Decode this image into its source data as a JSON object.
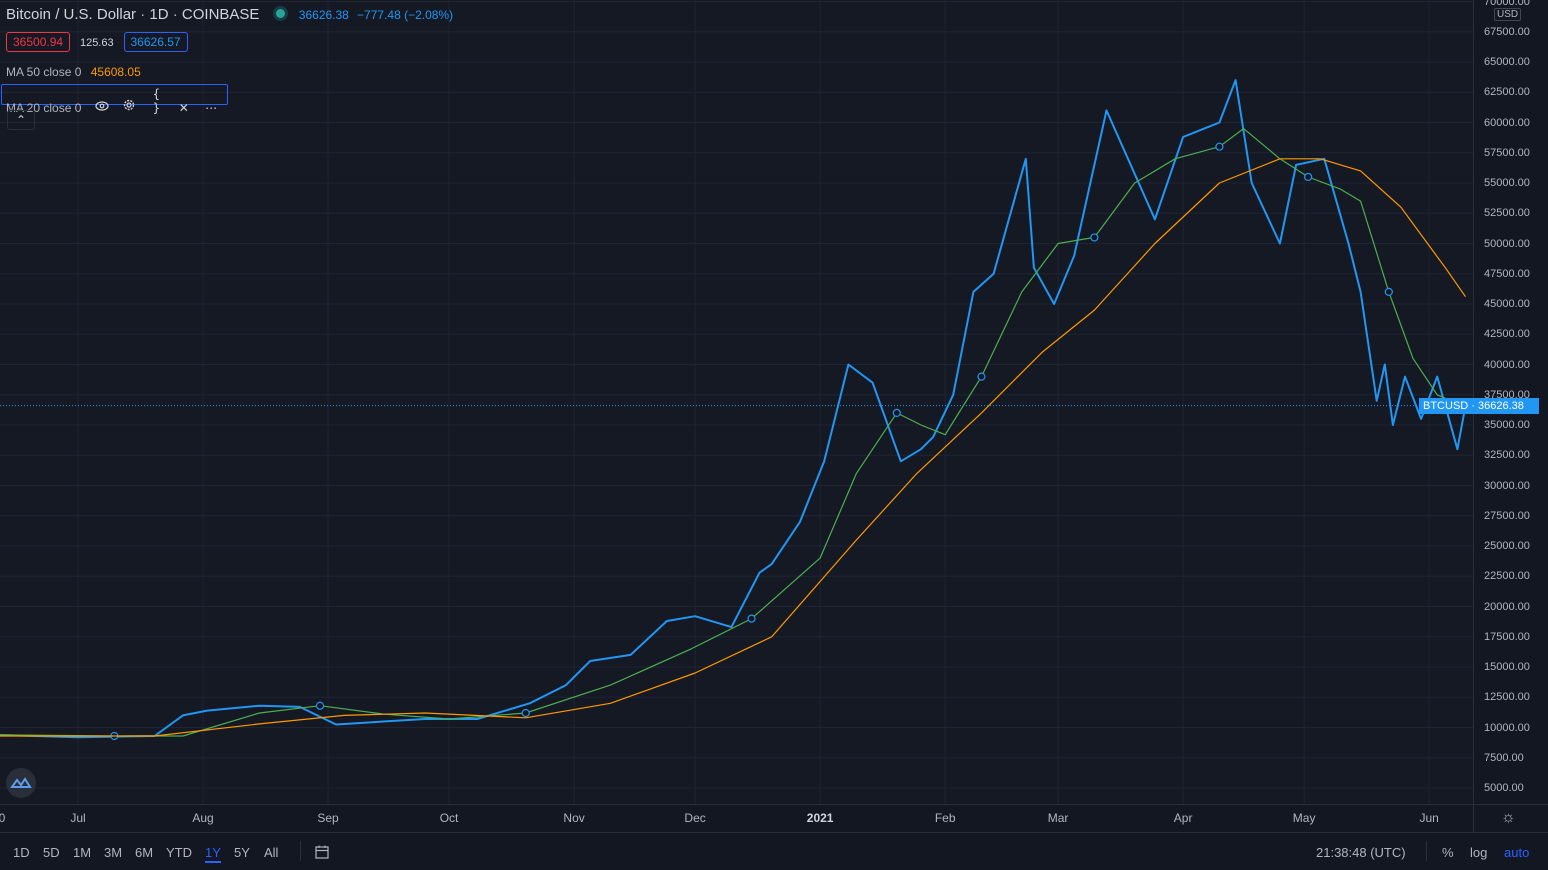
{
  "header": {
    "symbol_title": "Bitcoin / U.S. Dollar",
    "interval": "1D",
    "exchange": "COINBASE",
    "last_price": "36626.38",
    "change": "−777.48 (−2.08%)",
    "sep": "·"
  },
  "quotes": {
    "bid": "36500.94",
    "spread": "125.63",
    "ask": "36626.57"
  },
  "indicators": {
    "ma50_label": "MA 50 close 0",
    "ma50_value": "45608.05",
    "ma20_label": "MA 20 close 0"
  },
  "price_axis": {
    "currency": "USD",
    "ticks": [
      "70000.00",
      "67500.00",
      "65000.00",
      "62500.00",
      "60000.00",
      "57500.00",
      "55000.00",
      "52500.00",
      "50000.00",
      "47500.00",
      "45000.00",
      "42500.00",
      "40000.00",
      "37500.00",
      "35000.00",
      "32500.00",
      "30000.00",
      "27500.00",
      "25000.00",
      "22500.00",
      "20000.00",
      "17500.00",
      "15000.00",
      "12500.00",
      "10000.00",
      "7500.00",
      "5000.00"
    ],
    "current_label": "BTCUSD · 36626.38"
  },
  "time_axis": {
    "ticks": [
      "0",
      "Jul",
      "Aug",
      "Sep",
      "Oct",
      "Nov",
      "Dec",
      "2021",
      "Feb",
      "Mar",
      "Apr",
      "May",
      "Jun"
    ]
  },
  "bottom_bar": {
    "ranges": [
      "1D",
      "5D",
      "1M",
      "3M",
      "6M",
      "YTD",
      "1Y",
      "5Y",
      "All"
    ],
    "active_range": "1Y",
    "clock": "21:38:48 (UTC)",
    "percent": "%",
    "log": "log",
    "auto": "auto"
  },
  "colors": {
    "price": "#2196f3",
    "ma20": "#4caf50",
    "ma50": "#ff9800",
    "background": "#131722"
  },
  "chart_data": {
    "type": "line",
    "title": "Bitcoin / U.S. Dollar · 1D · COINBASE",
    "x_type": "date",
    "x_range": [
      "2020-06-10",
      "2021-06-10"
    ],
    "ylim": [
      4000,
      70000
    ],
    "grid": true,
    "series": [
      {
        "name": "BTCUSD",
        "color": "#2196f3",
        "x": [
          "2020-06-10",
          "2020-07-01",
          "2020-07-20",
          "2020-07-27",
          "2020-08-02",
          "2020-08-15",
          "2020-08-25",
          "2020-09-03",
          "2020-09-10",
          "2020-09-25",
          "2020-10-08",
          "2020-10-15",
          "2020-10-21",
          "2020-10-30",
          "2020-11-05",
          "2020-11-15",
          "2020-11-24",
          "2020-12-01",
          "2020-12-10",
          "2020-12-17",
          "2020-12-20",
          "2020-12-27",
          "2021-01-02",
          "2021-01-08",
          "2021-01-14",
          "2021-01-21",
          "2021-01-26",
          "2021-01-29",
          "2021-02-03",
          "2021-02-08",
          "2021-02-13",
          "2021-02-21",
          "2021-02-23",
          "2021-02-28",
          "2021-03-05",
          "2021-03-13",
          "2021-03-17",
          "2021-03-25",
          "2021-04-01",
          "2021-04-10",
          "2021-04-14",
          "2021-04-18",
          "2021-04-25",
          "2021-04-29",
          "2021-05-06",
          "2021-05-12",
          "2021-05-15",
          "2021-05-19",
          "2021-05-21",
          "2021-05-23",
          "2021-05-26",
          "2021-05-30",
          "2021-06-03",
          "2021-06-08",
          "2021-06-10"
        ],
        "y": [
          9400,
          9200,
          9300,
          11000,
          11400,
          11800,
          11700,
          10250,
          10400,
          10700,
          10700,
          11400,
          12000,
          13500,
          15500,
          16000,
          18800,
          19200,
          18300,
          22800,
          23500,
          27000,
          32000,
          40000,
          38500,
          32000,
          33000,
          34000,
          37500,
          46000,
          47500,
          57000,
          48000,
          45000,
          49000,
          61000,
          58000,
          52000,
          58800,
          60000,
          63500,
          55000,
          50000,
          56500,
          57000,
          50000,
          46000,
          37000,
          40000,
          35000,
          39000,
          35500,
          39000,
          33000,
          36600
        ]
      },
      {
        "name": "MA 20",
        "color": "#4caf50",
        "x": [
          "2020-06-10",
          "2020-07-10",
          "2020-07-27",
          "2020-08-15",
          "2020-08-30",
          "2020-09-15",
          "2020-10-01",
          "2020-10-20",
          "2020-11-10",
          "2020-11-30",
          "2020-12-15",
          "2021-01-01",
          "2021-01-10",
          "2021-01-20",
          "2021-01-26",
          "2021-02-01",
          "2021-02-10",
          "2021-02-20",
          "2021-03-01",
          "2021-03-10",
          "2021-03-20",
          "2021-03-30",
          "2021-04-10",
          "2021-04-16",
          "2021-04-25",
          "2021-05-02",
          "2021-05-10",
          "2021-05-15",
          "2021-05-22",
          "2021-05-28",
          "2021-06-03",
          "2021-06-10"
        ],
        "y": [
          9400,
          9300,
          9300,
          11200,
          11800,
          11100,
          10700,
          11200,
          13500,
          16500,
          19000,
          24000,
          31000,
          36000,
          35000,
          34200,
          39000,
          46000,
          50000,
          50500,
          55000,
          57000,
          58000,
          59500,
          57000,
          55500,
          54500,
          53500,
          46000,
          40500,
          37500,
          36500
        ]
      },
      {
        "name": "MA 50",
        "color": "#ff9800",
        "x": [
          "2020-06-10",
          "2020-07-20",
          "2020-08-15",
          "2020-09-05",
          "2020-09-25",
          "2020-10-20",
          "2020-11-10",
          "2020-12-01",
          "2020-12-20",
          "2021-01-10",
          "2021-01-25",
          "2021-02-10",
          "2021-02-25",
          "2021-03-10",
          "2021-03-25",
          "2021-04-10",
          "2021-04-25",
          "2021-05-05",
          "2021-05-15",
          "2021-05-25",
          "2021-06-05",
          "2021-06-10"
        ],
        "y": [
          9300,
          9300,
          10300,
          11000,
          11200,
          10800,
          12000,
          14500,
          17500,
          25500,
          31000,
          36000,
          41000,
          44500,
          50000,
          55000,
          57000,
          57000,
          56000,
          53000,
          48000,
          45600
        ]
      }
    ]
  }
}
